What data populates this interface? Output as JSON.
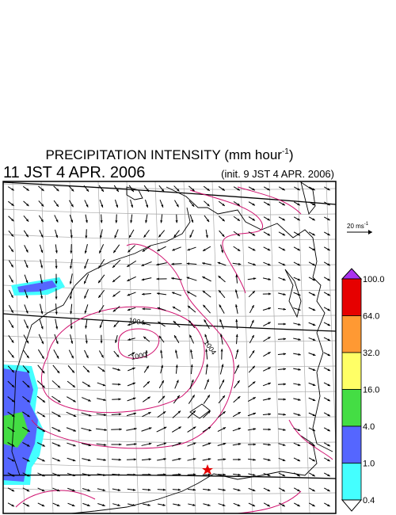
{
  "header": {
    "title": {
      "text": "PRECIPITATION INTENSITY (mm hour",
      "superscript": "-1",
      "close": ")"
    },
    "valid_time": "11 JST 4 APR. 2006",
    "init_time": "(init. 9 JST 4 APR. 2006)"
  },
  "reference_vector": {
    "text": "20 ms",
    "superscript": "-1"
  },
  "contour_labels": [
    "1004",
    "1000",
    "1004"
  ],
  "colorbar": {
    "levels": [
      {
        "label": "100.0",
        "color": "#e60000"
      },
      {
        "label": "64.0",
        "color": "#ff9933"
      },
      {
        "label": "32.0",
        "color": "#ffff66"
      },
      {
        "label": "16.0",
        "color": "#44dd44"
      },
      {
        "label": "4.0",
        "color": "#5566ff"
      },
      {
        "label": "1.0",
        "color": "#44ffff"
      },
      {
        "label": "0.4",
        "color": "#ffffff"
      }
    ],
    "over_color": "#aa33ee"
  }
}
